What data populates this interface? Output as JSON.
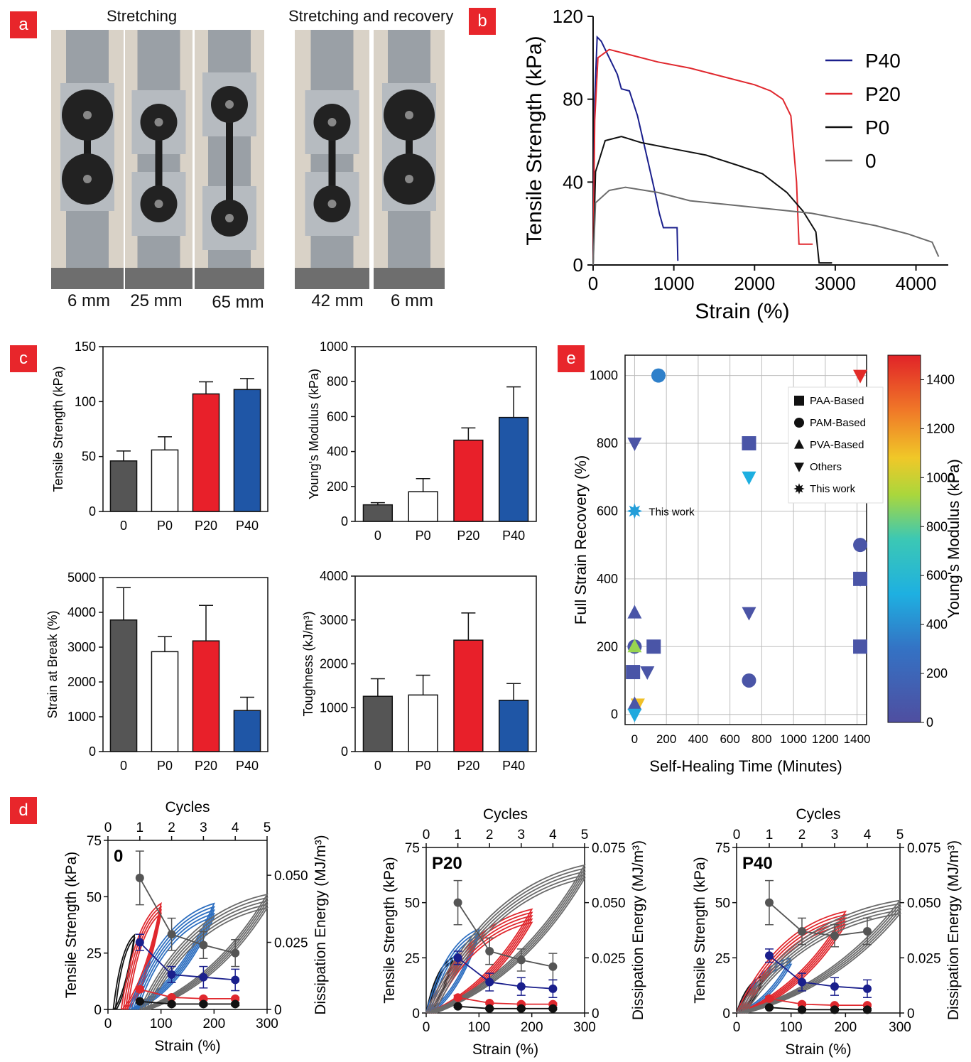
{
  "panels": {
    "a": "a",
    "b": "b",
    "c": "c",
    "d": "d",
    "e": "e"
  },
  "panel_a": {
    "headers": [
      "Stretching",
      "Stretching and recovery"
    ],
    "captions": [
      "6 mm",
      "25 mm",
      "65 mm",
      "42 mm",
      "6 mm"
    ]
  },
  "colors": {
    "P40": "#1a1f8c",
    "P20": "#e0282e",
    "P0": "#111111",
    "zero": "#6b6b6b",
    "bar_gray": "#555555",
    "bar_red": "#e8202a",
    "bar_blue": "#1f56a6"
  },
  "chart_data": [
    {
      "id": "b",
      "type": "line",
      "xlabel": "Strain (%)",
      "ylabel": "Tensile Strength (kPa)",
      "xlim": [
        0,
        4400
      ],
      "ylim": [
        0,
        120
      ],
      "xticks": [
        0,
        1000,
        2000,
        3000,
        4000
      ],
      "yticks": [
        0,
        40,
        80,
        120
      ],
      "legend": [
        "P40",
        "P20",
        "P0",
        "0"
      ],
      "series": [
        {
          "name": "P40",
          "points": [
            [
              0,
              0
            ],
            [
              20,
              80
            ],
            [
              50,
              110
            ],
            [
              100,
              108
            ],
            [
              200,
              100
            ],
            [
              300,
              92
            ],
            [
              350,
              85
            ],
            [
              450,
              84
            ],
            [
              550,
              72
            ],
            [
              650,
              55
            ],
            [
              750,
              38
            ],
            [
              820,
              25
            ],
            [
              870,
              18
            ],
            [
              1040,
              18
            ],
            [
              1050,
              2
            ]
          ]
        },
        {
          "name": "P20",
          "points": [
            [
              0,
              0
            ],
            [
              20,
              70
            ],
            [
              60,
              100
            ],
            [
              200,
              104
            ],
            [
              400,
              102
            ],
            [
              800,
              98
            ],
            [
              1200,
              95
            ],
            [
              1600,
              91
            ],
            [
              2000,
              87
            ],
            [
              2200,
              84
            ],
            [
              2350,
              80
            ],
            [
              2450,
              72
            ],
            [
              2520,
              40
            ],
            [
              2550,
              10
            ],
            [
              2720,
              10
            ]
          ]
        },
        {
          "name": "P0",
          "points": [
            [
              0,
              0
            ],
            [
              30,
              45
            ],
            [
              150,
              60
            ],
            [
              350,
              62
            ],
            [
              600,
              59
            ],
            [
              1000,
              56
            ],
            [
              1400,
              53
            ],
            [
              1800,
              48
            ],
            [
              2100,
              44
            ],
            [
              2400,
              35
            ],
            [
              2600,
              26
            ],
            [
              2760,
              16
            ],
            [
              2800,
              1
            ],
            [
              2960,
              1
            ]
          ]
        },
        {
          "name": "0",
          "points": [
            [
              0,
              0
            ],
            [
              30,
              30
            ],
            [
              200,
              36
            ],
            [
              400,
              37.5
            ],
            [
              800,
              35
            ],
            [
              1200,
              31
            ],
            [
              1700,
              29
            ],
            [
              2200,
              27
            ],
            [
              2700,
              25
            ],
            [
              3100,
              22
            ],
            [
              3500,
              19
            ],
            [
              3900,
              15
            ],
            [
              4200,
              11
            ],
            [
              4280,
              4
            ]
          ]
        }
      ]
    },
    {
      "id": "c1",
      "type": "bar",
      "ylabel": "Tensile Strength (kPa)",
      "categories": [
        "0",
        "P0",
        "P20",
        "P40"
      ],
      "values": [
        46,
        56,
        107,
        111
      ],
      "errors": [
        9,
        12,
        11,
        10
      ],
      "ylim": [
        0,
        150
      ],
      "yticks": [
        0,
        50,
        100,
        150
      ]
    },
    {
      "id": "c2",
      "type": "bar",
      "ylabel": "Young's Modulus (kPa)",
      "categories": [
        "0",
        "P0",
        "P20",
        "P40"
      ],
      "values": [
        95,
        170,
        465,
        595
      ],
      "errors": [
        12,
        75,
        70,
        175
      ],
      "ylim": [
        0,
        1000
      ],
      "yticks": [
        0,
        200,
        400,
        600,
        800,
        1000
      ]
    },
    {
      "id": "c3",
      "type": "bar",
      "ylabel": "Strain at Break (%)",
      "categories": [
        "0",
        "P0",
        "P20",
        "P40"
      ],
      "values": [
        3780,
        2870,
        3180,
        1180
      ],
      "errors": [
        930,
        430,
        1020,
        380
      ],
      "ylim": [
        0,
        5000
      ],
      "yticks": [
        0,
        1000,
        2000,
        3000,
        4000,
        5000
      ]
    },
    {
      "id": "c4",
      "type": "bar",
      "ylabel": "Toughness (kJ/m³)",
      "categories": [
        "0",
        "P0",
        "P20",
        "P40"
      ],
      "values": [
        1260,
        1290,
        2540,
        1170
      ],
      "errors": [
        400,
        450,
        620,
        380
      ],
      "ylim": [
        0,
        4000
      ],
      "yticks": [
        0,
        1000,
        2000,
        3000,
        4000
      ]
    },
    {
      "id": "d1",
      "type": "line",
      "sample": "0",
      "xlabel": "Strain (%)",
      "top_xlabel": "Cycles",
      "ylabel": "Tensile Strength (kPa)",
      "ylabel2": "Dissipation Energy (MJ/m³)",
      "xlim": [
        0,
        300
      ],
      "ylim": [
        0,
        75
      ],
      "y2lim": [
        0,
        0.063
      ],
      "cycles_lim": [
        0,
        5
      ],
      "xticks": [
        0,
        100,
        200,
        300
      ],
      "yticks": [
        0,
        25,
        50,
        75
      ],
      "y2ticks": [
        "0",
        "0.025",
        "0.050"
      ],
      "cycle_ticks": [
        0,
        1,
        2,
        3,
        4,
        5
      ],
      "loops": [
        {
          "color": "black",
          "start": 10,
          "end": 50,
          "peak": 33,
          "count": 2
        },
        {
          "color": "red",
          "start": 25,
          "end": 100,
          "peak": 47,
          "count": 4
        },
        {
          "color": "blue",
          "start": 40,
          "end": 200,
          "peak": 47,
          "count": 5
        },
        {
          "color": "gray",
          "start": 60,
          "end": 300,
          "peak": 51,
          "count": 5
        }
      ],
      "energy": [
        {
          "name": "gray",
          "x": [
            1,
            2,
            3,
            4
          ],
          "y": [
            0.049,
            0.028,
            0.024,
            0.021
          ],
          "err": [
            0.01,
            0.006,
            0.005,
            0.005
          ]
        },
        {
          "name": "blue",
          "x": [
            1,
            2,
            3,
            4
          ],
          "y": [
            0.025,
            0.013,
            0.012,
            0.011
          ],
          "err": [
            0.003,
            0.003,
            0.004,
            0.004
          ]
        },
        {
          "name": "red",
          "x": [
            1,
            2,
            3,
            4
          ],
          "y": [
            0.0075,
            0.0045,
            0.004,
            0.004
          ],
          "err": [
            0.001,
            0.0005,
            0.0005,
            0.0005
          ]
        },
        {
          "name": "black",
          "x": [
            1,
            2,
            3,
            4
          ],
          "y": [
            0.003,
            0.002,
            0.002,
            0.002
          ],
          "err": [
            0.0005,
            0.0005,
            0.0005,
            0.0005
          ]
        }
      ]
    },
    {
      "id": "d2",
      "type": "line",
      "sample": "P20",
      "xlabel": "Strain (%)",
      "top_xlabel": "Cycles",
      "ylabel": "Tensile Strength (kPa)",
      "ylabel2": "Dissipation Energy (MJ/m³)",
      "xlim": [
        0,
        300
      ],
      "ylim": [
        0,
        75
      ],
      "y2lim": [
        0,
        0.075
      ],
      "cycles_lim": [
        0,
        5
      ],
      "xticks": [
        0,
        100,
        200,
        300
      ],
      "yticks": [
        0,
        25,
        50,
        75
      ],
      "y2ticks": [
        "0",
        "0.025",
        "0.050",
        "0.075"
      ],
      "cycle_ticks": [
        0,
        1,
        2,
        3,
        4,
        5
      ],
      "loops": [
        {
          "color": "black",
          "start": 0,
          "end": 50,
          "peak": 25,
          "count": 2
        },
        {
          "color": "blue",
          "start": 0,
          "end": 100,
          "peak": 38,
          "count": 3
        },
        {
          "color": "red",
          "start": 0,
          "end": 200,
          "peak": 47,
          "count": 5
        },
        {
          "color": "gray",
          "start": 0,
          "end": 300,
          "peak": 67,
          "count": 5
        }
      ],
      "energy": [
        {
          "name": "gray",
          "x": [
            1,
            2,
            3,
            4
          ],
          "y": [
            0.05,
            0.028,
            0.024,
            0.021
          ],
          "err": [
            0.01,
            0.006,
            0.005,
            0.006
          ]
        },
        {
          "name": "blue",
          "x": [
            1,
            2,
            3,
            4
          ],
          "y": [
            0.025,
            0.014,
            0.012,
            0.011
          ],
          "err": [
            0.003,
            0.004,
            0.004,
            0.004
          ]
        },
        {
          "name": "red",
          "x": [
            1,
            2,
            3,
            4
          ],
          "y": [
            0.007,
            0.0045,
            0.004,
            0.004
          ],
          "err": [
            0.001,
            0.0005,
            0.0005,
            0.0005
          ]
        },
        {
          "name": "black",
          "x": [
            1,
            2,
            3,
            4
          ],
          "y": [
            0.003,
            0.002,
            0.002,
            0.002
          ],
          "err": [
            0.0005,
            0.0005,
            0.0005,
            0.0005
          ]
        }
      ]
    },
    {
      "id": "d3",
      "type": "line",
      "sample": "P40",
      "xlabel": "Strain (%)",
      "top_xlabel": "Cycles",
      "ylabel": "Tensile Strength (kPa)",
      "ylabel2": "Dissipation Energy (MJ/m³)",
      "xlim": [
        0,
        300
      ],
      "ylim": [
        0,
        75
      ],
      "y2lim": [
        0,
        0.075
      ],
      "cycles_lim": [
        0,
        5
      ],
      "xticks": [
        0,
        100,
        200,
        300
      ],
      "yticks": [
        0,
        25,
        50,
        75
      ],
      "y2ticks": [
        "0",
        "0.025",
        "0.050",
        "0.075"
      ],
      "cycle_ticks": [
        0,
        1,
        2,
        3,
        4,
        5
      ],
      "loops": [
        {
          "color": "black",
          "start": 0,
          "end": 50,
          "peak": 17,
          "count": 2
        },
        {
          "color": "blue",
          "start": 0,
          "end": 100,
          "peak": 25,
          "count": 3
        },
        {
          "color": "red",
          "start": 0,
          "end": 200,
          "peak": 46,
          "count": 5
        },
        {
          "color": "gray",
          "start": 0,
          "end": 300,
          "peak": 51,
          "count": 5
        }
      ],
      "energy": [
        {
          "name": "gray",
          "x": [
            1,
            2,
            3,
            4
          ],
          "y": [
            0.05,
            0.037,
            0.035,
            0.037
          ],
          "err": [
            0.01,
            0.006,
            0.005,
            0.006
          ]
        },
        {
          "name": "blue",
          "x": [
            1,
            2,
            3,
            4
          ],
          "y": [
            0.026,
            0.014,
            0.012,
            0.011
          ],
          "err": [
            0.003,
            0.004,
            0.004,
            0.004
          ]
        },
        {
          "name": "red",
          "x": [
            1,
            2,
            3,
            4
          ],
          "y": [
            0.0065,
            0.004,
            0.0035,
            0.0035
          ],
          "err": [
            0.001,
            0.0005,
            0.0005,
            0.0005
          ]
        },
        {
          "name": "black",
          "x": [
            1,
            2,
            3,
            4
          ],
          "y": [
            0.0025,
            0.0015,
            0.0015,
            0.0015
          ],
          "err": [
            0.0005,
            0.0005,
            0.0005,
            0.0005
          ]
        }
      ]
    },
    {
      "id": "e",
      "type": "scatter",
      "xlabel": "Self-Healing Time (Minutes)",
      "ylabel": "Full Strain Recovery (%)",
      "colorbar_label": "Young's Modulus (kPa)",
      "xlim": [
        -60,
        1460
      ],
      "ylim": [
        -30,
        1060
      ],
      "xticks": [
        0,
        200,
        400,
        600,
        800,
        1000,
        1200,
        1400
      ],
      "yticks": [
        0,
        200,
        400,
        600,
        800,
        1000
      ],
      "colorbar_ticks": [
        0,
        200,
        400,
        600,
        800,
        1000,
        1200,
        1400
      ],
      "colorbar_lim": [
        0,
        1500
      ],
      "legend": [
        "PAA-Based",
        "PAM-Based",
        "PVA-Based",
        "Others",
        "This work"
      ],
      "annotation": "This work",
      "points": [
        {
          "x": 150,
          "y": 1000,
          "shape": "circle",
          "modulus": 350
        },
        {
          "x": 1420,
          "y": 1000,
          "shape": "tri-down",
          "modulus": 1480
        },
        {
          "x": 0,
          "y": 800,
          "shape": "tri-down",
          "modulus": 50
        },
        {
          "x": 720,
          "y": 800,
          "shape": "square",
          "modulus": 60
        },
        {
          "x": 720,
          "y": 700,
          "shape": "tri-down",
          "modulus": 520
        },
        {
          "x": 0,
          "y": 600,
          "shape": "star",
          "modulus": 460
        },
        {
          "x": 1420,
          "y": 500,
          "shape": "circle",
          "modulus": 60
        },
        {
          "x": 1420,
          "y": 400,
          "shape": "square",
          "modulus": 60
        },
        {
          "x": 1420,
          "y": 400,
          "shape": "tri-down",
          "modulus": 60
        },
        {
          "x": 720,
          "y": 300,
          "shape": "tri-down",
          "modulus": 50
        },
        {
          "x": 0,
          "y": 300,
          "shape": "tri-up",
          "modulus": 60
        },
        {
          "x": 0,
          "y": 200,
          "shape": "circle",
          "modulus": 60
        },
        {
          "x": 0,
          "y": 200,
          "shape": "tri-up",
          "modulus": 900
        },
        {
          "x": 120,
          "y": 200,
          "shape": "square",
          "modulus": 60
        },
        {
          "x": 1420,
          "y": 200,
          "shape": "square",
          "modulus": 60
        },
        {
          "x": -10,
          "y": 125,
          "shape": "square",
          "modulus": 60
        },
        {
          "x": 80,
          "y": 125,
          "shape": "tri-down",
          "modulus": 60
        },
        {
          "x": 720,
          "y": 100,
          "shape": "circle",
          "modulus": 60
        },
        {
          "x": 20,
          "y": 30,
          "shape": "tri-down",
          "modulus": 1100
        },
        {
          "x": 0,
          "y": 30,
          "shape": "tri-up",
          "modulus": 60
        },
        {
          "x": 0,
          "y": 0,
          "shape": "tri-down",
          "modulus": 500
        }
      ]
    }
  ]
}
